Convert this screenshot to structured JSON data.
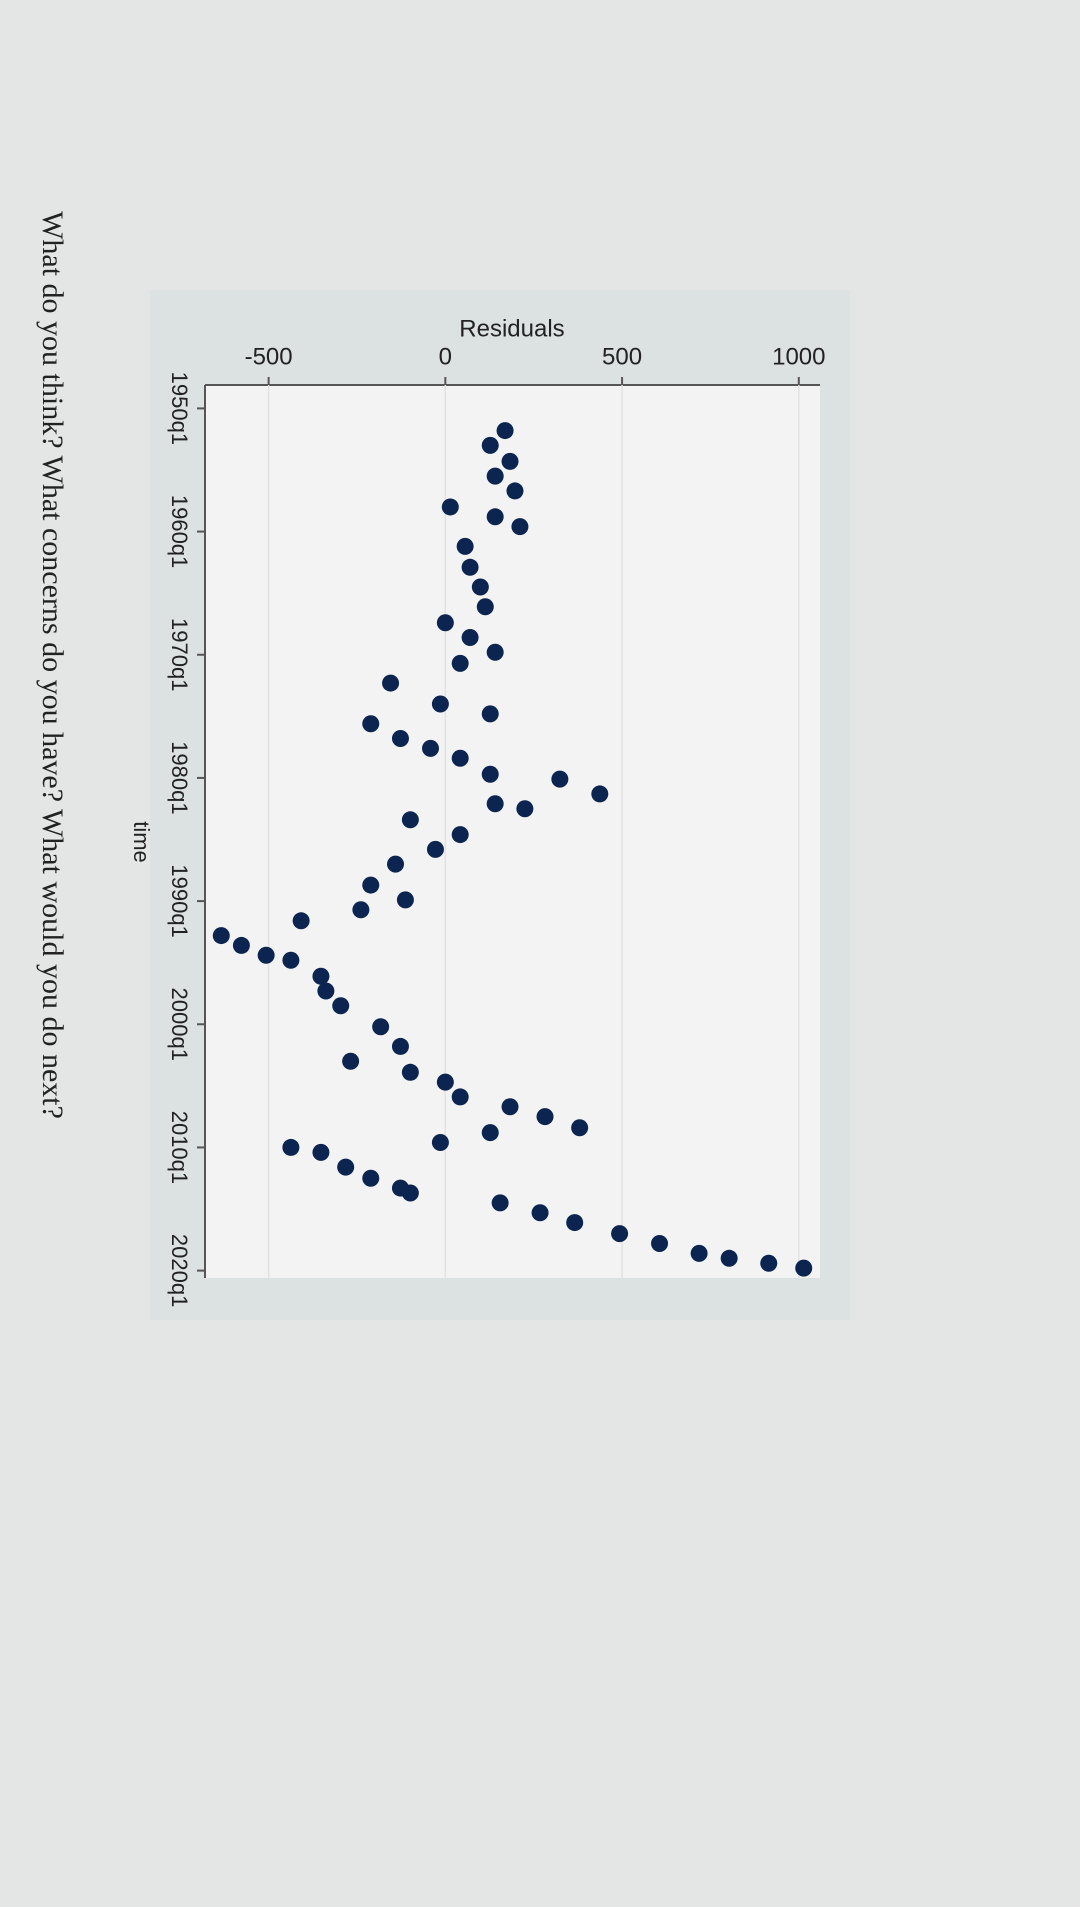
{
  "question": "What do you think? What concerns do you have? What would you do next?",
  "chart_data": {
    "type": "scatter",
    "x_label": "time",
    "y_label": "Residuals",
    "color": "#0b2550",
    "grid": true,
    "xlim": [
      1948.1,
      2020.6
    ],
    "ylim": [
      -680,
      1060
    ],
    "xticks": [
      {
        "value": 1950,
        "label": "1950q1"
      },
      {
        "value": 1960,
        "label": "1960q1"
      },
      {
        "value": 1970,
        "label": "1970q1"
      },
      {
        "value": 1980,
        "label": "1980q1"
      },
      {
        "value": 1990,
        "label": "1990q1"
      },
      {
        "value": 2000,
        "label": "2000q1"
      },
      {
        "value": 2010,
        "label": "2010q1"
      },
      {
        "value": 2020,
        "label": "2020q1"
      }
    ],
    "yticks": [
      -500,
      0,
      500,
      1000
    ],
    "x": [
      1951.8,
      1953,
      1954.3,
      1955.5,
      1956.7,
      1958,
      1958.8,
      1959.6,
      1961.2,
      1962.9,
      1964.5,
      1966.1,
      1967.4,
      1968.6,
      1969.8,
      1970.7,
      1972.3,
      1974,
      1974.8,
      1975.6,
      1976.8,
      1977.6,
      1978.4,
      1979.7,
      1980.1,
      1981.3,
      1982.1,
      1982.5,
      1983.4,
      1984.6,
      1985.8,
      1987,
      1988.7,
      1989.9,
      1990.7,
      1991.6,
      1992.8,
      1993.6,
      1994.4,
      1994.8,
      1996.1,
      1997.3,
      1998.5,
      2000.2,
      2001.8,
      2003,
      2003.9,
      2004.7,
      2005.9,
      2006.7,
      2007.5,
      2008.4,
      2008.8,
      2009.6,
      2010,
      2010.4,
      2011.6,
      2012.5,
      2013.3,
      2013.7,
      2014.5,
      2015.3,
      2016.1,
      2017,
      2017.8,
      2018.6,
      2019,
      2019.4,
      2019.8
    ],
    "values": [
      169,
      127,
      183,
      141,
      197,
      14,
      141,
      211,
      56,
      70,
      99,
      113,
      0,
      70,
      141,
      42,
      -155,
      -14,
      127,
      -211,
      -127,
      -42,
      42,
      127,
      324,
      437,
      141,
      225,
      -99,
      42,
      -28,
      -141,
      -211,
      -113,
      -239,
      -408,
      -634,
      -577,
      -507,
      -437,
      -352,
      -338,
      -296,
      -183,
      -127,
      -268,
      -99,
      0,
      42,
      183,
      282,
      380,
      127,
      -14,
      -437,
      -352,
      -282,
      -211,
      -127,
      -99,
      155,
      268,
      366,
      493,
      606,
      718,
      803,
      915,
      1014
    ]
  }
}
